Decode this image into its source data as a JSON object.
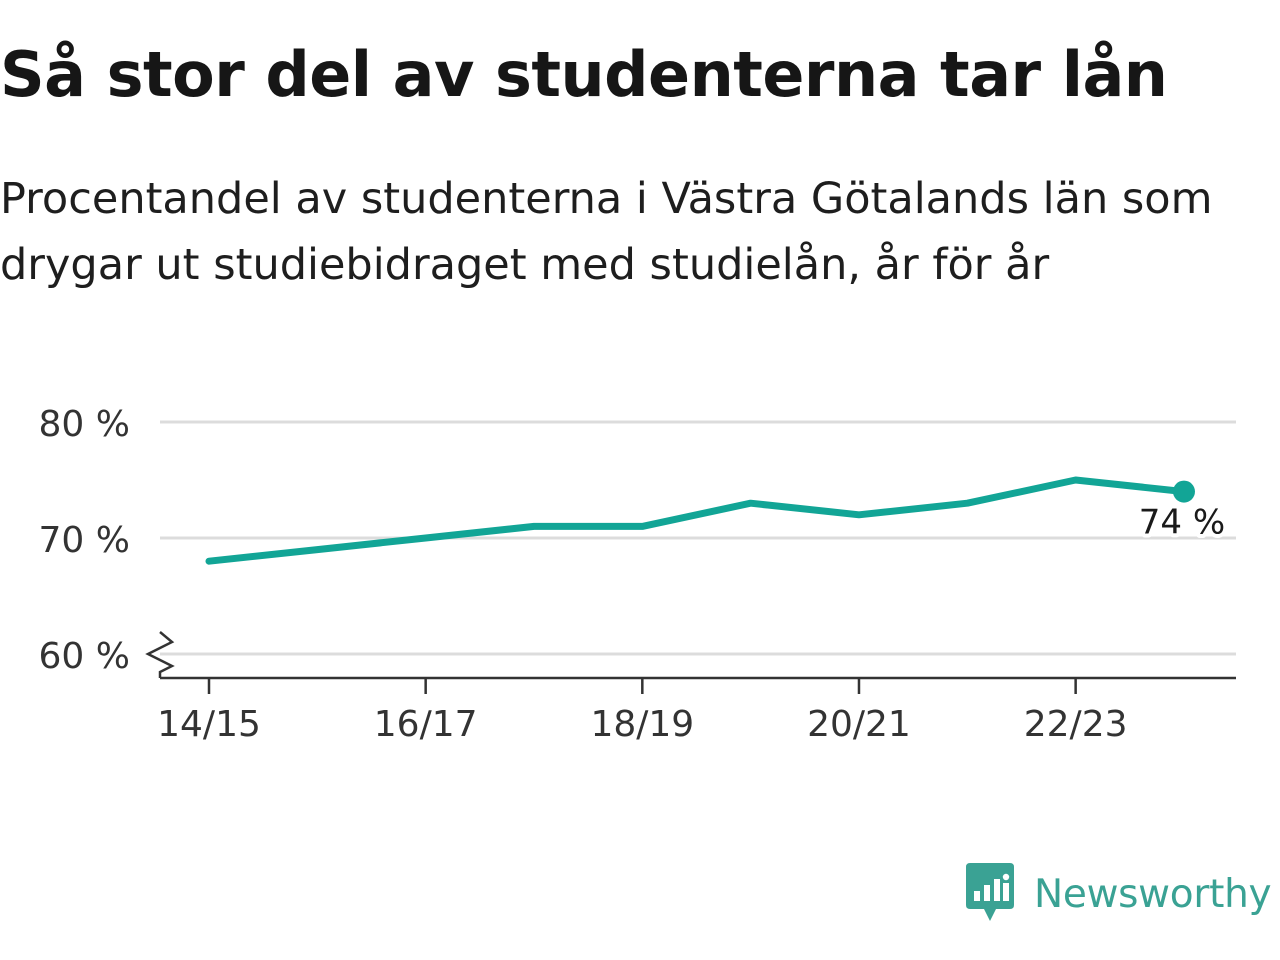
{
  "title": "Så stor del av studenterna tar lån",
  "subtitle": "Procentandel av studenterna i Västra Götalands län som drygar ut studiebidraget med studielån, år för år",
  "brand": {
    "name": "Newsworthy",
    "icon": "newsworthy-logo-icon",
    "color": "#3aa294"
  },
  "colors": {
    "line": "#12a596",
    "grid": "#dcdcdc",
    "axis": "#333333"
  },
  "chart_data": {
    "type": "line",
    "x": [
      "14/15",
      "15/16",
      "16/17",
      "17/18",
      "18/19",
      "19/20",
      "20/21",
      "21/22",
      "22/23",
      "23/24"
    ],
    "values": [
      68,
      69,
      70,
      71,
      71,
      73,
      72,
      73,
      75,
      74
    ],
    "x_tick_labels": [
      "14/15",
      "16/17",
      "18/19",
      "20/21",
      "22/23"
    ],
    "y_ticks": [
      60,
      70,
      80
    ],
    "y_tick_labels": [
      "60 %",
      "70 %",
      "80 %"
    ],
    "ylim": [
      60,
      80
    ],
    "y_axis_broken": true,
    "grid": true,
    "end_label": "74 %"
  }
}
